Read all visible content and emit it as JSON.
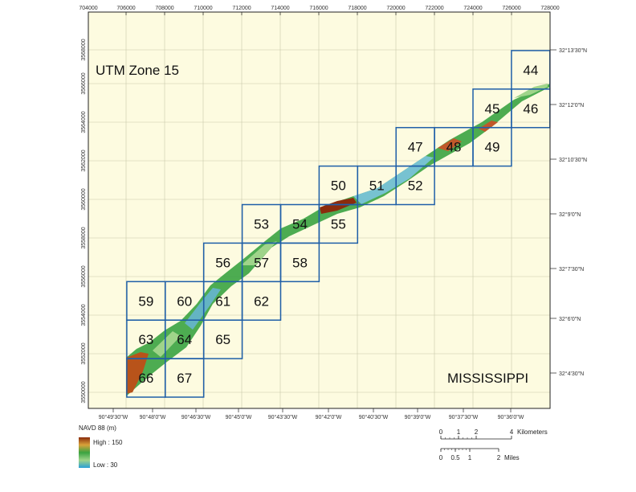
{
  "map": {
    "zone_label": "UTM Zone 15",
    "state_label": "MISSISSIPPI",
    "colors": {
      "background": "#fdfbe0",
      "tile_border": "#1f5fa8",
      "grid_line": "#c9c9a8",
      "frame": "#222222",
      "terrain_low": "#2a9fd6",
      "terrain_mid": "#3aa341",
      "terrain_high": "#8b2c0c"
    },
    "top_eastings": [
      "704000",
      "706000",
      "708000",
      "710000",
      "712000",
      "714000",
      "716000",
      "718000",
      "720000",
      "722000",
      "724000",
      "726000",
      "728000"
    ],
    "left_northings": [
      "3568000",
      "3566000",
      "3564000",
      "3562000",
      "3560000",
      "3558000",
      "3556000",
      "3554000",
      "3552000",
      "3550000"
    ],
    "right_latitudes": [
      "32°13'30\"N",
      "32°12'0\"N",
      "32°10'30\"N",
      "32°9'0\"N",
      "32°7'30\"N",
      "32°6'0\"N",
      "32°4'30\"N"
    ],
    "bottom_longitudes": [
      "90°49'30\"W",
      "90°48'0\"W",
      "90°46'30\"W",
      "90°45'0\"W",
      "90°43'30\"W",
      "90°42'0\"W",
      "90°40'30\"W",
      "90°39'0\"W",
      "90°37'30\"W",
      "90°36'0\"W"
    ],
    "tiles": [
      "44",
      "45",
      "46",
      "47",
      "48",
      "49",
      "50",
      "51",
      "52",
      "53",
      "54",
      "55",
      "56",
      "57",
      "58",
      "59",
      "60",
      "61",
      "62",
      "63",
      "64",
      "65",
      "66",
      "67"
    ]
  },
  "legend": {
    "title": "NAVD 88 (m)",
    "high_label": "High : 150",
    "low_label": "Low : 30"
  },
  "scalebar": {
    "km_ticks": [
      "0",
      "1",
      "2",
      "4"
    ],
    "km_unit": "Kilometers",
    "mile_ticks": [
      "0",
      "0.5",
      "1",
      "2"
    ],
    "mile_unit": "Miles"
  }
}
